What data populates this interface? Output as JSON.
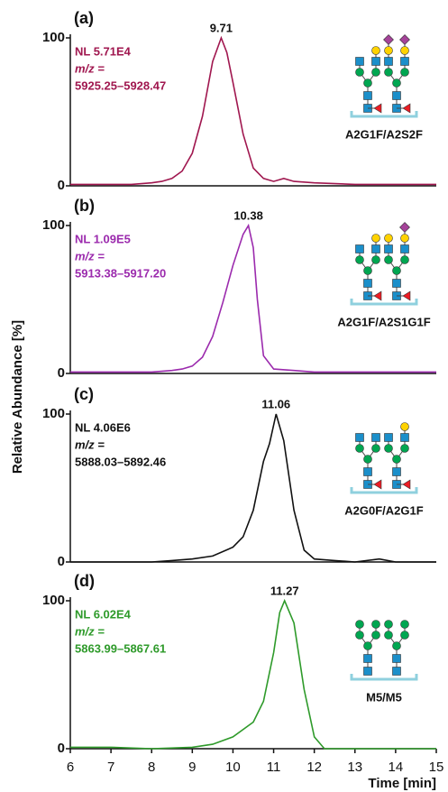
{
  "y_axis_label": "Relative Abundance [%]",
  "x_axis_label": "Time [min]",
  "chart_data": [
    {
      "type": "line",
      "panel_label": "(a)",
      "nl": "NL 5.71E4",
      "mz_label": "m/z =",
      "mz_range": "5925.25–5928.47",
      "glycan": "A2G1F/A2S2F",
      "color": "#a0174f",
      "peak": {
        "x": 9.71,
        "y": 100
      },
      "x": [
        6,
        6.5,
        7,
        7.5,
        8,
        8.25,
        8.5,
        8.75,
        9,
        9.25,
        9.5,
        9.71,
        9.85,
        10,
        10.25,
        10.5,
        10.75,
        11,
        11.25,
        11.5,
        12,
        13,
        14,
        15
      ],
      "values": [
        1,
        1,
        1,
        1,
        2,
        3,
        5,
        10,
        22,
        47,
        84,
        100,
        90,
        70,
        35,
        12,
        5,
        3,
        5,
        3,
        2,
        1,
        1,
        1
      ],
      "xlim": [
        6,
        15
      ],
      "ylim": [
        0,
        100
      ],
      "yticks": [
        0,
        100
      ]
    },
    {
      "type": "line",
      "panel_label": "(b)",
      "nl": "NL 1.09E5",
      "mz_label": "m/z =",
      "mz_range": "5913.38–5917.20",
      "glycan": "A2G1F/A2S1G1F",
      "color": "#9b2aad",
      "peak": {
        "x": 10.38,
        "y": 100
      },
      "x": [
        6,
        7,
        8,
        8.5,
        8.75,
        9,
        9.25,
        9.5,
        9.75,
        10,
        10.25,
        10.38,
        10.5,
        10.6,
        10.75,
        11,
        11.5,
        12,
        13,
        14,
        15
      ],
      "values": [
        1,
        1,
        1,
        2,
        3,
        5,
        11,
        25,
        48,
        73,
        94,
        100,
        85,
        50,
        12,
        3,
        2,
        1,
        1,
        1,
        1
      ],
      "xlim": [
        6,
        15
      ],
      "ylim": [
        0,
        100
      ],
      "yticks": [
        0,
        100
      ]
    },
    {
      "type": "line",
      "panel_label": "(c)",
      "nl": "NL 4.06E6",
      "mz_label": "m/z =",
      "mz_range": "5888.03–5892.46",
      "glycan": "A2G0F/A2G1F",
      "color": "#111111",
      "peak": {
        "x": 11.06,
        "y": 100
      },
      "x": [
        6,
        7,
        8,
        8.5,
        9,
        9.5,
        10,
        10.25,
        10.5,
        10.75,
        10.9,
        11.06,
        11.25,
        11.5,
        11.75,
        12,
        12.5,
        13,
        13.6,
        14,
        15
      ],
      "values": [
        0,
        0,
        0,
        1,
        2,
        4,
        10,
        17,
        35,
        68,
        80,
        100,
        82,
        35,
        8,
        2,
        1,
        0,
        2,
        0,
        0
      ],
      "xlim": [
        6,
        15
      ],
      "ylim": [
        0,
        100
      ],
      "yticks": [
        0,
        100
      ]
    },
    {
      "type": "line",
      "panel_label": "(d)",
      "nl": "NL 6.02E4",
      "mz_label": "m/z =",
      "mz_range": "5863.99–5867.61",
      "glycan": "M5/M5",
      "color": "#2e9a2a",
      "peak": {
        "x": 11.27,
        "y": 100
      },
      "x": [
        6,
        7,
        8,
        9,
        9.5,
        10,
        10.5,
        10.75,
        11,
        11.15,
        11.27,
        11.5,
        11.75,
        12,
        12.25,
        13,
        14,
        15
      ],
      "values": [
        1,
        1,
        0,
        1,
        3,
        8,
        18,
        32,
        65,
        92,
        100,
        85,
        40,
        8,
        0,
        0,
        0,
        0
      ],
      "xlim": [
        6,
        15
      ],
      "ylim": [
        0,
        100
      ],
      "yticks": [
        0,
        100
      ],
      "xticks": [
        6,
        7,
        8,
        9,
        10,
        11,
        12,
        13,
        14,
        15
      ]
    }
  ]
}
